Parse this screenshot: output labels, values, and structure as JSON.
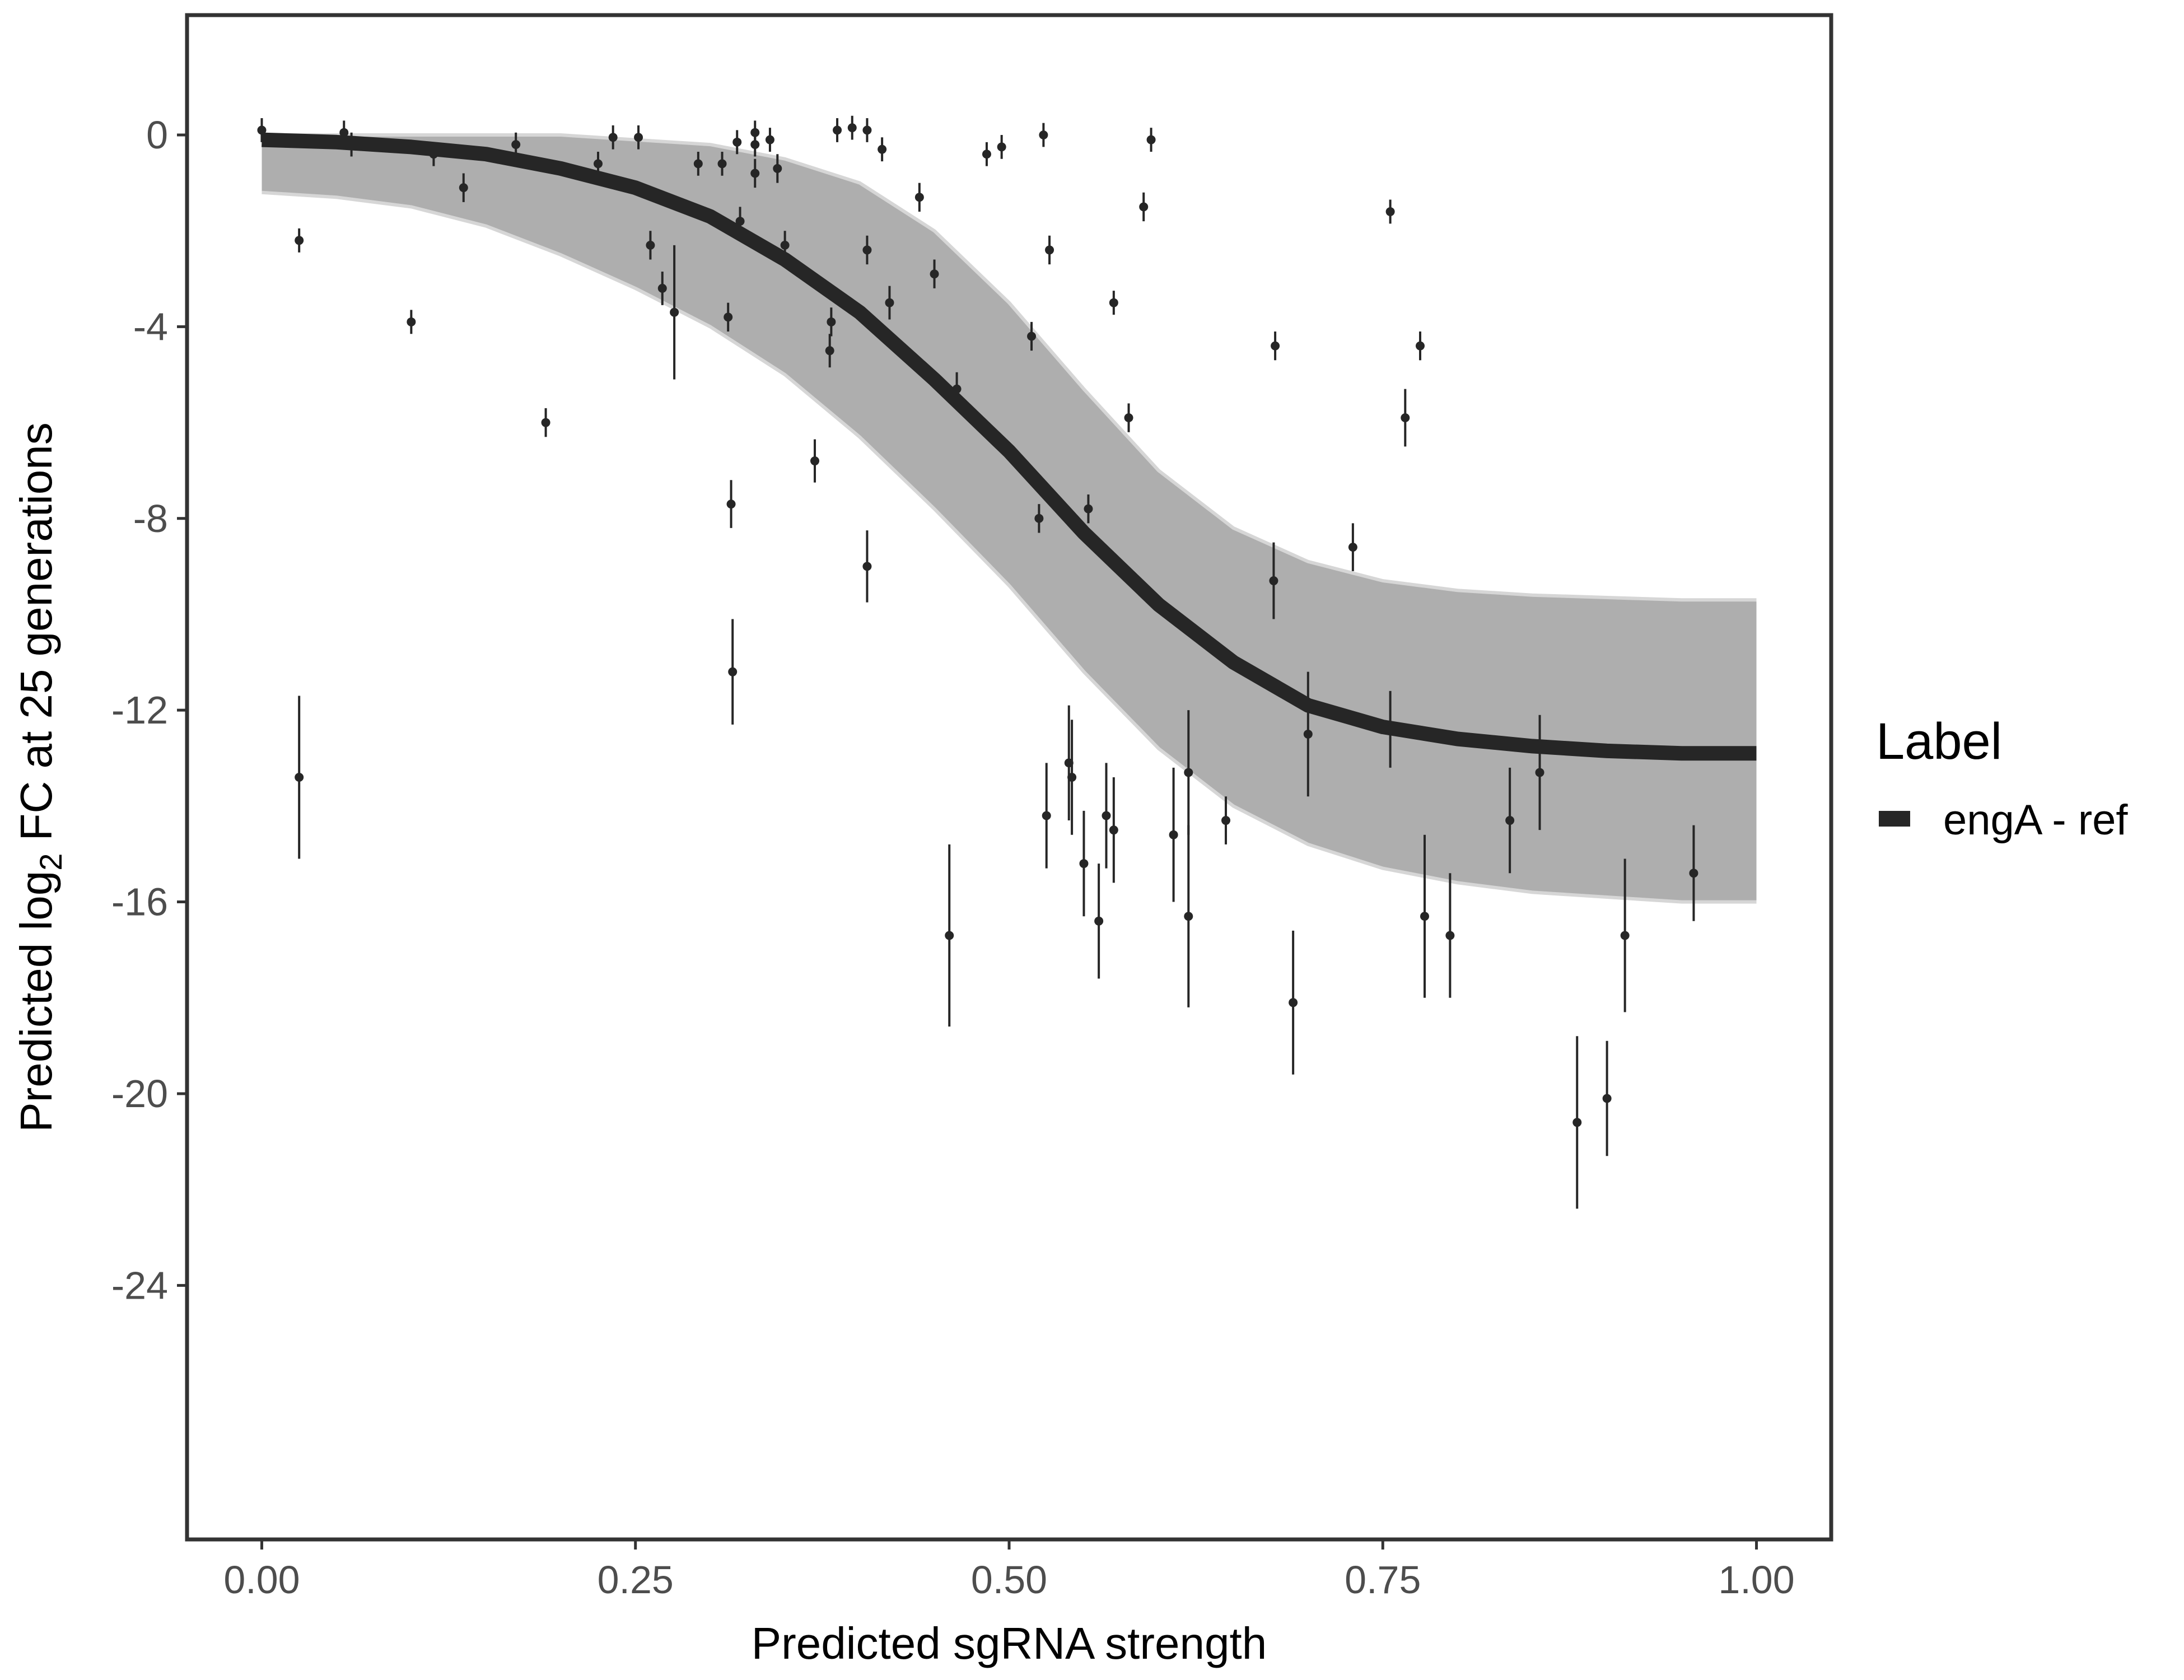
{
  "chart_data": {
    "type": "scatter",
    "title": "",
    "xlabel": "Predicted sgRNA strength",
    "ylabel": {
      "prefix": "Predicted  log",
      "subscript": "2",
      "suffix": " FC at 25 generations"
    },
    "xlim": [
      -0.05,
      1.05
    ],
    "ylim": [
      -29.3,
      2.5
    ],
    "x_ticks": [
      0,
      0.25,
      0.5,
      0.75,
      1
    ],
    "x_tick_labels": [
      "0.00",
      "0.25",
      "0.50",
      "0.75",
      "1.00"
    ],
    "y_ticks": [
      0,
      -4,
      -8,
      -12,
      -16,
      -20,
      -24
    ],
    "y_tick_labels": [
      "0",
      "-4",
      "-8",
      "-12",
      "-16",
      "-20",
      "-24"
    ],
    "grid": false,
    "legend": {
      "title": "Label",
      "position": "right",
      "entries": [
        {
          "label": "engA - ref",
          "color": "#262626"
        }
      ]
    },
    "fit_curve": {
      "name": "engA - ref",
      "color": "#262626",
      "x": [
        0,
        0.05,
        0.1,
        0.15,
        0.2,
        0.25,
        0.3,
        0.35,
        0.4,
        0.45,
        0.5,
        0.55,
        0.6,
        0.65,
        0.7,
        0.75,
        0.8,
        0.85,
        0.9,
        0.95,
        1
      ],
      "y": [
        -0.1,
        -0.15,
        -0.25,
        -0.4,
        -0.7,
        -1.1,
        -1.7,
        -2.6,
        -3.7,
        -5.1,
        -6.6,
        -8.3,
        -9.8,
        -11.0,
        -11.9,
        -12.35,
        -12.6,
        -12.75,
        -12.85,
        -12.9,
        -12.9
      ]
    },
    "uncertainty_band": {
      "color": "#aaaaaa",
      "x": [
        0,
        0.05,
        0.1,
        0.15,
        0.2,
        0.25,
        0.3,
        0.35,
        0.4,
        0.45,
        0.5,
        0.55,
        0.6,
        0.65,
        0.7,
        0.75,
        0.8,
        0.85,
        0.9,
        0.95,
        1
      ],
      "upper": [
        0,
        0,
        0,
        0,
        0,
        -0.1,
        -0.2,
        -0.5,
        -1.0,
        -2.0,
        -3.5,
        -5.3,
        -7.0,
        -8.2,
        -8.9,
        -9.3,
        -9.5,
        -9.6,
        -9.65,
        -9.7,
        -9.7
      ],
      "lower": [
        -1.2,
        -1.3,
        -1.5,
        -1.9,
        -2.5,
        -3.2,
        -4.0,
        -5.0,
        -6.3,
        -7.8,
        -9.4,
        -11.2,
        -12.8,
        -14.0,
        -14.8,
        -15.3,
        -15.6,
        -15.8,
        -15.9,
        -16.0,
        -16.0
      ]
    },
    "points": [
      {
        "x": 0.0,
        "y": 0.1,
        "err": 0.25
      },
      {
        "x": 0.025,
        "y": -2.2,
        "err": 0.25
      },
      {
        "x": 0.025,
        "y": -13.4,
        "err": 1.7
      },
      {
        "x": 0.055,
        "y": 0.05,
        "err": 0.25
      },
      {
        "x": 0.06,
        "y": -0.2,
        "err": 0.25
      },
      {
        "x": 0.1,
        "y": -3.9,
        "err": 0.25
      },
      {
        "x": 0.115,
        "y": -0.4,
        "err": 0.25
      },
      {
        "x": 0.135,
        "y": -1.1,
        "err": 0.3
      },
      {
        "x": 0.17,
        "y": -0.2,
        "err": 0.25
      },
      {
        "x": 0.19,
        "y": -6.0,
        "err": 0.3
      },
      {
        "x": 0.225,
        "y": -0.6,
        "err": 0.25
      },
      {
        "x": 0.235,
        "y": -0.05,
        "err": 0.25
      },
      {
        "x": 0.252,
        "y": -0.05,
        "err": 0.25
      },
      {
        "x": 0.26,
        "y": -2.3,
        "err": 0.3
      },
      {
        "x": 0.268,
        "y": -3.2,
        "err": 0.35
      },
      {
        "x": 0.276,
        "y": -3.7,
        "err": 1.4
      },
      {
        "x": 0.292,
        "y": -0.6,
        "err": 0.25
      },
      {
        "x": 0.308,
        "y": -0.6,
        "err": 0.25
      },
      {
        "x": 0.312,
        "y": -3.8,
        "err": 0.3
      },
      {
        "x": 0.314,
        "y": -7.7,
        "err": 0.5
      },
      {
        "x": 0.315,
        "y": -11.2,
        "err": 1.1
      },
      {
        "x": 0.318,
        "y": -0.15,
        "err": 0.25
      },
      {
        "x": 0.32,
        "y": -1.8,
        "err": 0.3
      },
      {
        "x": 0.33,
        "y": 0.05,
        "err": 0.25
      },
      {
        "x": 0.33,
        "y": -0.2,
        "err": 0.25
      },
      {
        "x": 0.33,
        "y": -0.8,
        "err": 0.3
      },
      {
        "x": 0.34,
        "y": -0.1,
        "err": 0.25
      },
      {
        "x": 0.345,
        "y": -0.7,
        "err": 0.3
      },
      {
        "x": 0.35,
        "y": -2.3,
        "err": 0.3
      },
      {
        "x": 0.37,
        "y": -6.8,
        "err": 0.45
      },
      {
        "x": 0.38,
        "y": -4.5,
        "err": 0.35
      },
      {
        "x": 0.381,
        "y": -3.9,
        "err": 0.3
      },
      {
        "x": 0.385,
        "y": 0.1,
        "err": 0.25
      },
      {
        "x": 0.395,
        "y": 0.15,
        "err": 0.25
      },
      {
        "x": 0.405,
        "y": 0.1,
        "err": 0.25
      },
      {
        "x": 0.405,
        "y": -2.4,
        "err": 0.3
      },
      {
        "x": 0.405,
        "y": -9.0,
        "err": 0.75
      },
      {
        "x": 0.415,
        "y": -0.3,
        "err": 0.25
      },
      {
        "x": 0.42,
        "y": -3.5,
        "err": 0.35
      },
      {
        "x": 0.44,
        "y": -1.3,
        "err": 0.3
      },
      {
        "x": 0.45,
        "y": -2.9,
        "err": 0.3
      },
      {
        "x": 0.46,
        "y": -16.7,
        "err": 1.9
      },
      {
        "x": 0.465,
        "y": -5.3,
        "err": 0.35
      },
      {
        "x": 0.485,
        "y": -0.4,
        "err": 0.25
      },
      {
        "x": 0.495,
        "y": -0.25,
        "err": 0.25
      },
      {
        "x": 0.515,
        "y": -4.2,
        "err": 0.3
      },
      {
        "x": 0.52,
        "y": -8.0,
        "err": 0.3
      },
      {
        "x": 0.523,
        "y": 0.0,
        "err": 0.25
      },
      {
        "x": 0.525,
        "y": -14.2,
        "err": 1.1
      },
      {
        "x": 0.527,
        "y": -2.4,
        "err": 0.3
      },
      {
        "x": 0.54,
        "y": -13.1,
        "err": 1.2
      },
      {
        "x": 0.542,
        "y": -13.4,
        "err": 1.2
      },
      {
        "x": 0.55,
        "y": -15.2,
        "err": 1.1
      },
      {
        "x": 0.553,
        "y": -7.8,
        "err": 0.3
      },
      {
        "x": 0.56,
        "y": -16.4,
        "err": 1.2
      },
      {
        "x": 0.565,
        "y": -14.2,
        "err": 1.1
      },
      {
        "x": 0.57,
        "y": -14.5,
        "err": 1.1
      },
      {
        "x": 0.57,
        "y": -3.5,
        "err": 0.25
      },
      {
        "x": 0.58,
        "y": -5.9,
        "err": 0.3
      },
      {
        "x": 0.59,
        "y": -1.5,
        "err": 0.3
      },
      {
        "x": 0.595,
        "y": -0.1,
        "err": 0.25
      },
      {
        "x": 0.61,
        "y": -14.6,
        "err": 1.4
      },
      {
        "x": 0.62,
        "y": -13.3,
        "err": 1.3
      },
      {
        "x": 0.62,
        "y": -16.3,
        "err": 1.9
      },
      {
        "x": 0.645,
        "y": -14.3,
        "err": 0.5
      },
      {
        "x": 0.677,
        "y": -9.3,
        "err": 0.8
      },
      {
        "x": 0.678,
        "y": -4.4,
        "err": 0.3
      },
      {
        "x": 0.69,
        "y": -18.1,
        "err": 1.5
      },
      {
        "x": 0.7,
        "y": -12.5,
        "err": 1.3
      },
      {
        "x": 0.73,
        "y": -8.6,
        "err": 0.5
      },
      {
        "x": 0.755,
        "y": -1.6,
        "err": 0.25
      },
      {
        "x": 0.755,
        "y": -12.4,
        "err": 0.8
      },
      {
        "x": 0.765,
        "y": -5.9,
        "err": 0.6
      },
      {
        "x": 0.775,
        "y": -4.4,
        "err": 0.3
      },
      {
        "x": 0.778,
        "y": -16.3,
        "err": 1.7
      },
      {
        "x": 0.795,
        "y": -16.7,
        "err": 1.3
      },
      {
        "x": 0.835,
        "y": -14.3,
        "err": 1.1
      },
      {
        "x": 0.855,
        "y": -13.3,
        "err": 1.2
      },
      {
        "x": 0.88,
        "y": -20.6,
        "err": 1.8
      },
      {
        "x": 0.9,
        "y": -20.1,
        "err": 1.2
      },
      {
        "x": 0.912,
        "y": -16.7,
        "err": 1.6
      },
      {
        "x": 0.958,
        "y": -15.4,
        "err": 1.0
      }
    ]
  }
}
